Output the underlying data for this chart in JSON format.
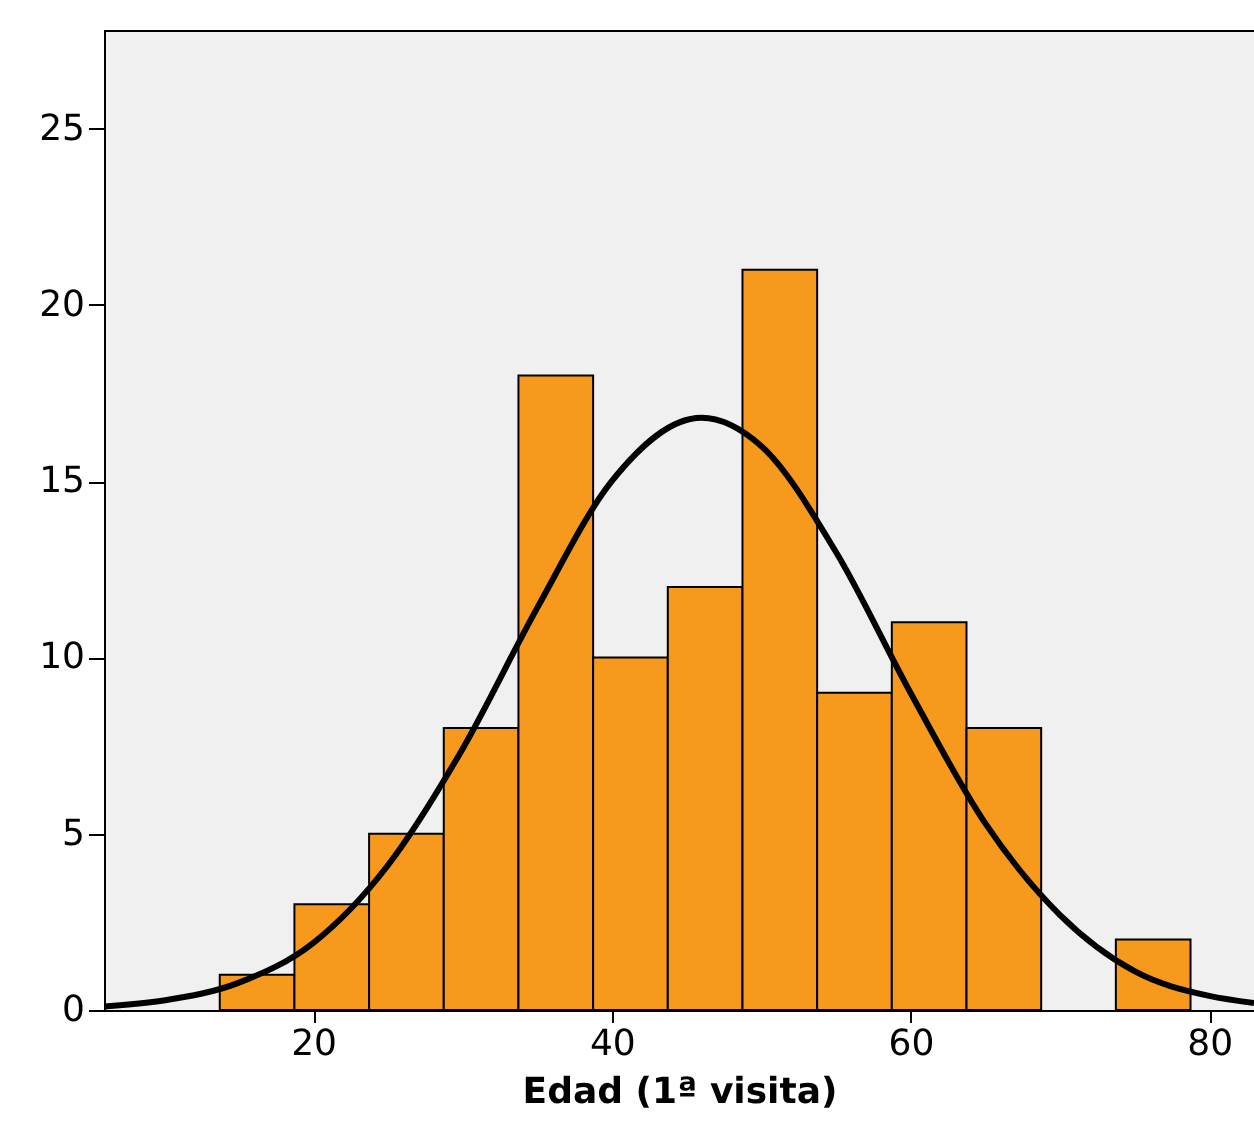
{
  "chart_data": {
    "type": "histogram",
    "xlabel": "Edad (1ª visita)",
    "bins": [
      13.75,
      18.75,
      23.75,
      28.75,
      33.75,
      38.75,
      43.75,
      48.75,
      53.75,
      58.75,
      63.75,
      68.75,
      73.75,
      78.75
    ],
    "values": [
      1,
      3,
      5,
      8,
      18,
      10,
      12,
      21,
      9,
      11,
      8,
      0,
      2
    ],
    "color": "#f7991c",
    "series": [
      {
        "type": "line",
        "color": "#000000",
        "x": [
          6,
          10,
          15,
          20,
          25,
          30,
          35,
          40,
          46,
          50,
          55,
          60,
          65,
          70,
          75,
          80,
          83
        ],
        "values": [
          0.1,
          0.27,
          0.77,
          1.9,
          4.1,
          7.4,
          11.4,
          15.0,
          16.8,
          16.0,
          13.0,
          9.0,
          5.3,
          2.7,
          1.1,
          0.4,
          0.2
        ]
      }
    ],
    "xlim": [
      6,
      83
    ],
    "ylim": [
      0,
      27.8
    ],
    "xticks": [
      20,
      40,
      60,
      80
    ],
    "yticks": [
      0,
      5,
      10,
      15,
      20,
      25
    ],
    "grid": false
  }
}
